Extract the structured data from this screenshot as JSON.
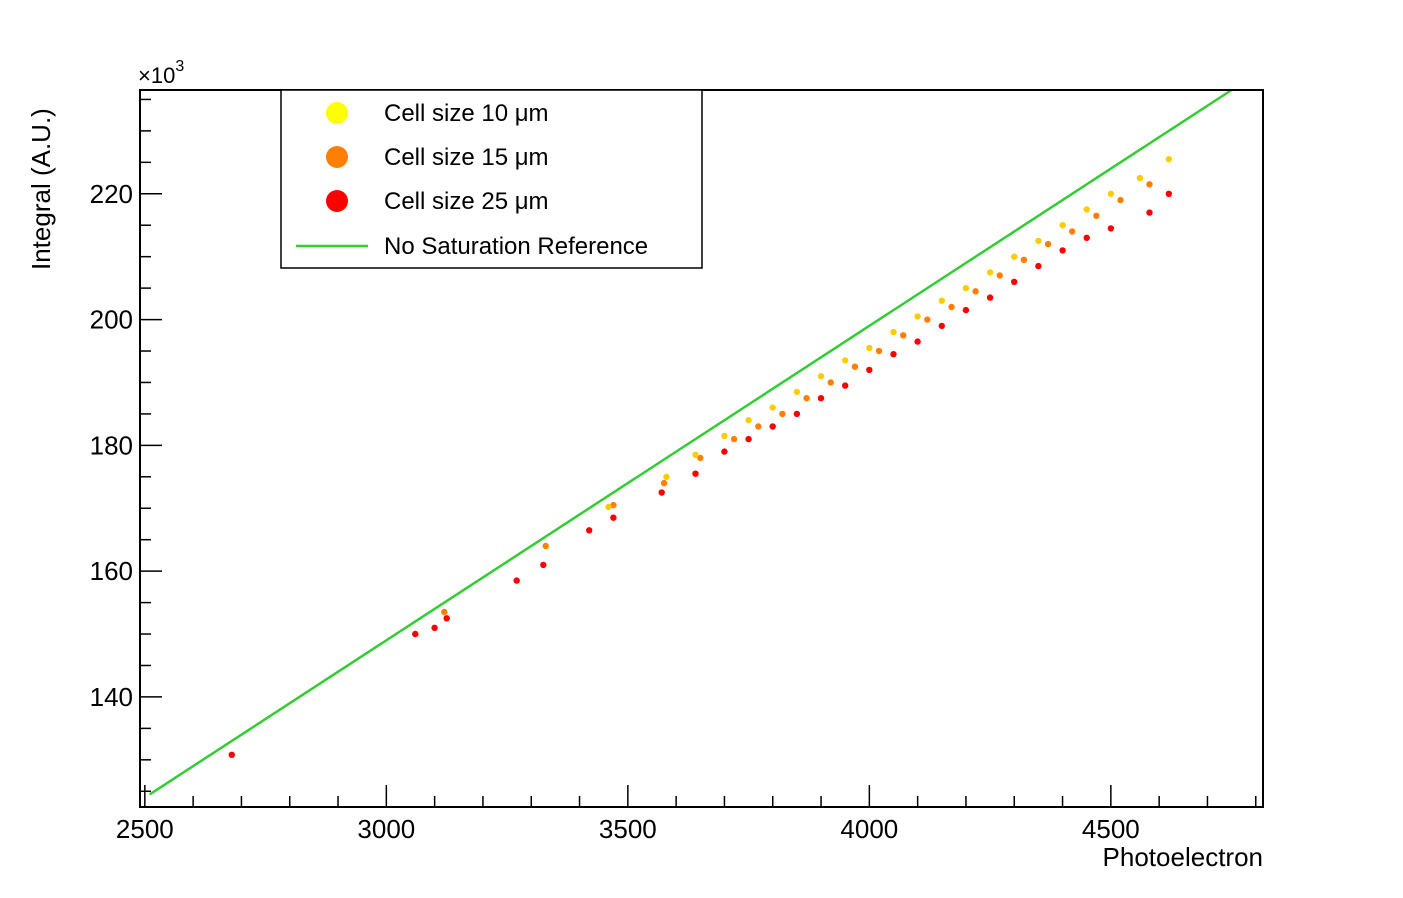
{
  "chart_data": {
    "type": "scatter",
    "xlabel": "Photoelectron",
    "ylabel": "Integral (A.U.)",
    "y_multiplier": "×10",
    "y_multiplier_exp": "3",
    "xlim": [
      2490,
      4815
    ],
    "ylim": [
      122.5,
      236.5
    ],
    "x_ticks": [
      2500,
      3000,
      3500,
      4000,
      4500
    ],
    "y_ticks": [
      140,
      160,
      180,
      200,
      220
    ],
    "grid": false,
    "legend_position": "top-left",
    "legend": [
      {
        "label": "Cell size 10 μm",
        "marker": "circle",
        "color": "#ffff00"
      },
      {
        "label": "Cell size 15 μm",
        "marker": "circle",
        "color": "#ff7f00"
      },
      {
        "label": "Cell size 25 μm",
        "marker": "circle",
        "color": "#ff0000"
      },
      {
        "label": "No Saturation Reference",
        "marker": "line",
        "color": "#33cc33"
      }
    ],
    "series": [
      {
        "name": "No Saturation Reference",
        "type": "line",
        "color": "#33cc33",
        "points": [
          [
            2510,
            124.5
          ],
          [
            4750,
            236.5
          ]
        ]
      },
      {
        "name": "Cell size 10 μm",
        "type": "scatter",
        "color": "#ffcc00",
        "points": [
          [
            3460,
            170.2
          ],
          [
            3580,
            175.0
          ],
          [
            3640,
            178.5
          ],
          [
            3700,
            181.5
          ],
          [
            3750,
            184.0
          ],
          [
            3800,
            186.0
          ],
          [
            3850,
            188.5
          ],
          [
            3900,
            191.0
          ],
          [
            3950,
            193.5
          ],
          [
            4000,
            195.5
          ],
          [
            4050,
            198.0
          ],
          [
            4100,
            200.5
          ],
          [
            4150,
            203.0
          ],
          [
            4200,
            205.0
          ],
          [
            4250,
            207.5
          ],
          [
            4300,
            210.0
          ],
          [
            4350,
            212.5
          ],
          [
            4400,
            215.0
          ],
          [
            4450,
            217.5
          ],
          [
            4500,
            220.0
          ],
          [
            4560,
            222.5
          ],
          [
            4620,
            225.5
          ]
        ]
      },
      {
        "name": "Cell size 15 μm",
        "type": "scatter",
        "color": "#ff7f00",
        "points": [
          [
            3120,
            153.5
          ],
          [
            3330,
            164.0
          ],
          [
            3470,
            170.5
          ],
          [
            3575,
            174.0
          ],
          [
            3650,
            178.0
          ],
          [
            3720,
            181.0
          ],
          [
            3770,
            183.0
          ],
          [
            3820,
            185.0
          ],
          [
            3870,
            187.5
          ],
          [
            3920,
            190.0
          ],
          [
            3970,
            192.5
          ],
          [
            4020,
            195.0
          ],
          [
            4070,
            197.5
          ],
          [
            4120,
            200.0
          ],
          [
            4170,
            202.0
          ],
          [
            4220,
            204.5
          ],
          [
            4270,
            207.0
          ],
          [
            4320,
            209.5
          ],
          [
            4370,
            212.0
          ],
          [
            4420,
            214.0
          ],
          [
            4470,
            216.5
          ],
          [
            4520,
            219.0
          ],
          [
            4580,
            221.5
          ]
        ]
      },
      {
        "name": "Cell size 25 μm",
        "type": "scatter",
        "color": "#ff0000",
        "points": [
          [
            2680,
            130.8
          ],
          [
            3060,
            150.0
          ],
          [
            3100,
            151.0
          ],
          [
            3125,
            152.5
          ],
          [
            3270,
            158.5
          ],
          [
            3325,
            161.0
          ],
          [
            3420,
            166.5
          ],
          [
            3470,
            168.5
          ],
          [
            3570,
            172.5
          ],
          [
            3640,
            175.5
          ],
          [
            3700,
            179.0
          ],
          [
            3750,
            181.0
          ],
          [
            3800,
            183.0
          ],
          [
            3850,
            185.0
          ],
          [
            3900,
            187.5
          ],
          [
            3950,
            189.5
          ],
          [
            4000,
            192.0
          ],
          [
            4050,
            194.5
          ],
          [
            4100,
            196.5
          ],
          [
            4150,
            199.0
          ],
          [
            4200,
            201.5
          ],
          [
            4250,
            203.5
          ],
          [
            4300,
            206.0
          ],
          [
            4350,
            208.5
          ],
          [
            4400,
            211.0
          ],
          [
            4450,
            213.0
          ],
          [
            4500,
            214.5
          ],
          [
            4580,
            217.0
          ],
          [
            4620,
            220.0
          ]
        ]
      }
    ]
  }
}
